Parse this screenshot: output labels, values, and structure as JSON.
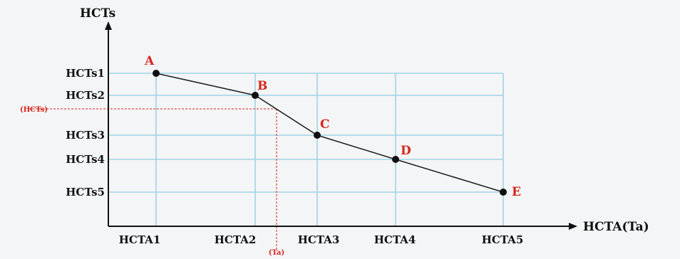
{
  "chart_data": {
    "type": "line",
    "xlabel": "HCTA(Ta)",
    "ylabel": "HCTs",
    "x_ticks": [
      "HCTA1",
      "HCTA2",
      "HCTA3",
      "HCTA4",
      "HCTA5"
    ],
    "y_ticks": [
      "HCTs1",
      "HCTs2",
      "HCTs3",
      "HCTs4",
      "HCTs5"
    ],
    "points": [
      {
        "label": "A",
        "x": "HCTA1",
        "y": "HCTs1"
      },
      {
        "label": "B",
        "x": "HCTA2",
        "y": "HCTs2"
      },
      {
        "label": "C",
        "x": "HCTA3",
        "y": "HCTs3"
      },
      {
        "label": "D",
        "x": "HCTA4",
        "y": "HCTs4"
      },
      {
        "label": "E",
        "x": "HCTA5",
        "y": "HCTs5"
      }
    ],
    "reference": {
      "x_label": "(Ta)",
      "y_label": "(HCTs)",
      "x_between": [
        "HCTA2",
        "HCTA3"
      ],
      "y_between": [
        "HCTs2",
        "HCTs3"
      ]
    },
    "grid": true,
    "colors": {
      "grid": "#9fd3e6",
      "line": "#222222",
      "point": "#111111",
      "labels": "#d9241c",
      "reference": "#d9241c"
    }
  }
}
